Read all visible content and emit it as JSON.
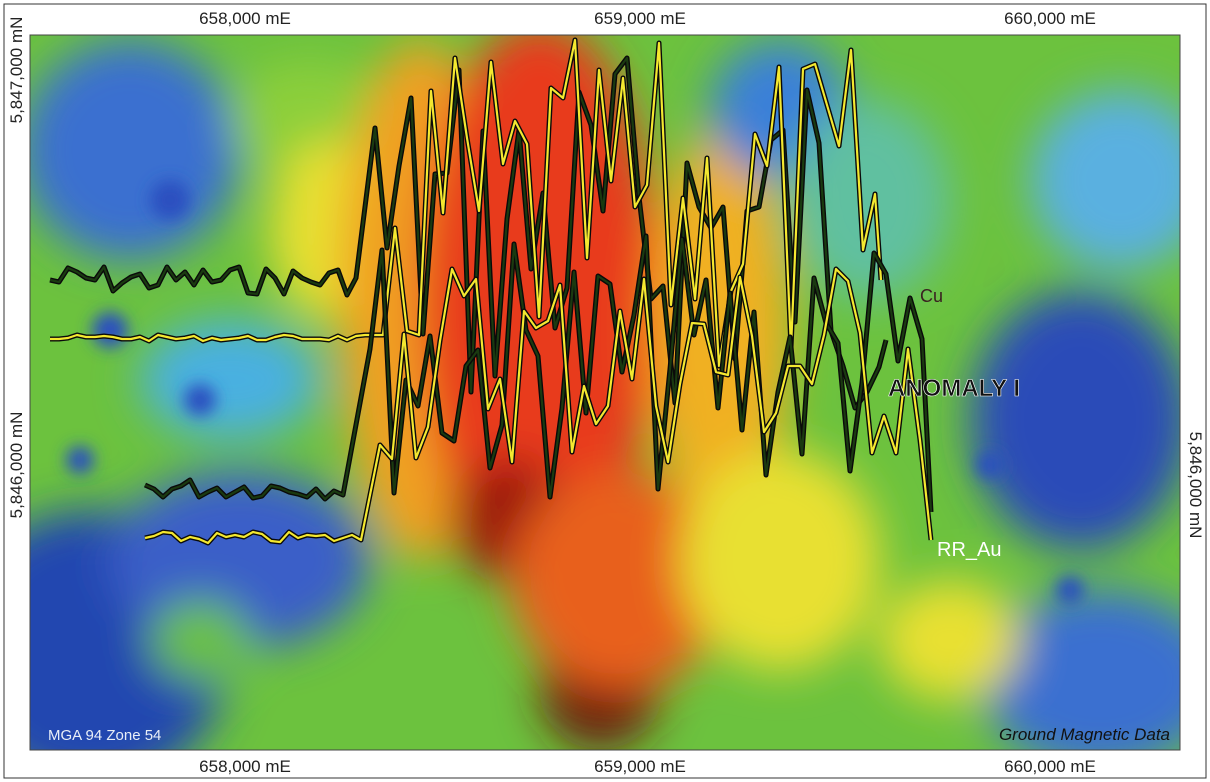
{
  "map": {
    "top_labels": [
      "658,000 mE",
      "659,000 mE",
      "660,000 mE"
    ],
    "bottom_labels": [
      "658,000 mE",
      "659,000 mE",
      "660,000 mE"
    ],
    "left_labels": [
      "5,847,000 mN",
      "5,846,000 mN"
    ],
    "right_labels": [
      "5,846,000 mN"
    ],
    "line_labels": [
      "Cu",
      "RR_Au"
    ],
    "anomaly": "ANOMALY I",
    "projection": "MGA 94 Zone 54",
    "source": "Ground Magnetic Data"
  }
}
